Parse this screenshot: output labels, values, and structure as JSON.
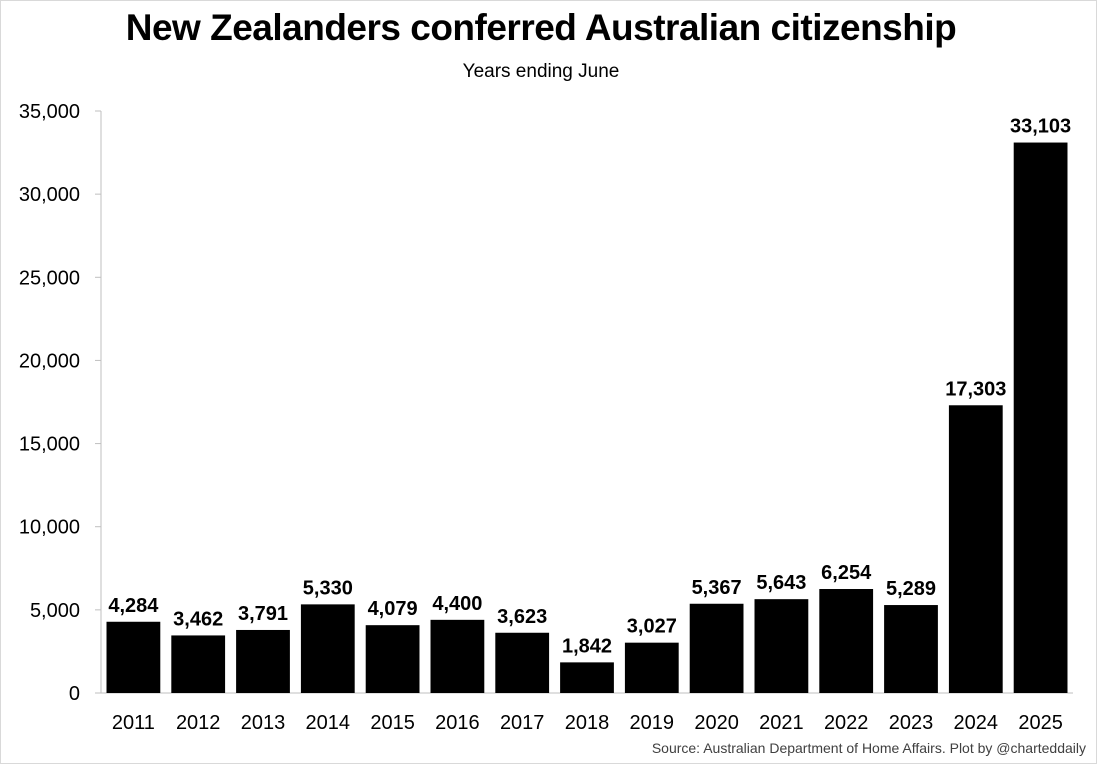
{
  "chart_data": {
    "type": "bar",
    "title": "New Zealanders conferred Australian citizenship",
    "subtitle": "Years ending June",
    "categories": [
      "2011",
      "2012",
      "2013",
      "2014",
      "2015",
      "2016",
      "2017",
      "2018",
      "2019",
      "2020",
      "2021",
      "2022",
      "2023",
      "2024",
      "2025"
    ],
    "values": [
      4284,
      3462,
      3791,
      5330,
      4079,
      4400,
      3623,
      1842,
      3027,
      5367,
      5643,
      6254,
      5289,
      17303,
      33103
    ],
    "data_labels": [
      "4,284",
      "3,462",
      "3,791",
      "5,330",
      "4,079",
      "4,400",
      "3,623",
      "1,842",
      "3,027",
      "5,367",
      "5,643",
      "6,254",
      "5,289",
      "17,303",
      "33,103"
    ],
    "y_ticks": [
      0,
      5000,
      10000,
      15000,
      20000,
      25000,
      30000,
      35000
    ],
    "y_tick_labels": [
      "0",
      "5,000",
      "10,000",
      "15,000",
      "20,000",
      "25,000",
      "30,000",
      "35,000"
    ],
    "ylim": [
      0,
      35000
    ],
    "xlabel": "",
    "ylabel": "",
    "grid": false,
    "legend": "none",
    "bar_color": "#000000",
    "source": "Source: Australian Department of Home Affairs. Plot by @charteddaily"
  }
}
